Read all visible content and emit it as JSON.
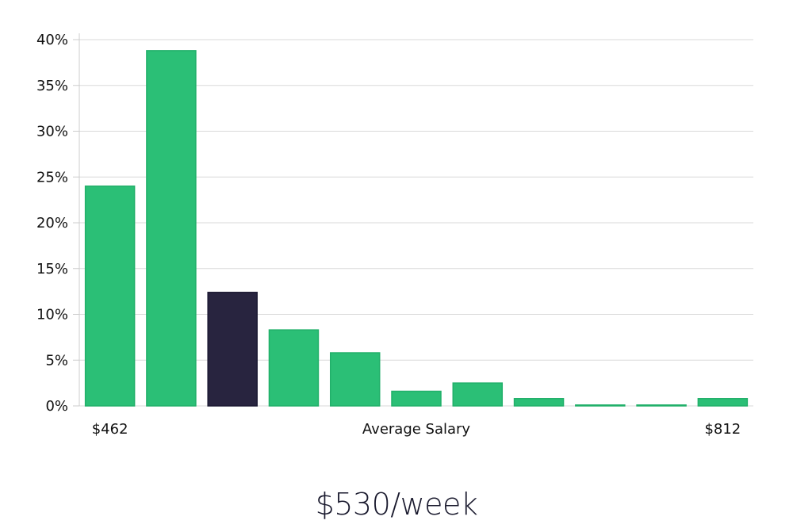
{
  "headline": "$530/week",
  "colors": {
    "bar": "#2bbf76",
    "bar_stroke": "#22b06a",
    "highlight": "#28243f",
    "highlight_stroke": "#1c1a33",
    "grid": "#d9d9d9",
    "axis": "#cccccc"
  },
  "chart_data": {
    "type": "bar",
    "values": [
      24.0,
      38.8,
      12.4,
      8.3,
      5.8,
      1.6,
      2.5,
      0.8,
      0.1,
      0.1,
      0.8
    ],
    "highlight_index": 2,
    "ylim": [
      0,
      40
    ],
    "y_ticks": [
      0,
      5,
      10,
      15,
      20,
      25,
      30,
      35,
      40
    ],
    "y_tick_labels": [
      "0%",
      "5%",
      "10%",
      "15%",
      "20%",
      "25%",
      "30%",
      "35%",
      "40%"
    ],
    "xlabel": "Average Salary",
    "x_min_label": "$462",
    "x_max_label": "$812",
    "grid": true
  }
}
